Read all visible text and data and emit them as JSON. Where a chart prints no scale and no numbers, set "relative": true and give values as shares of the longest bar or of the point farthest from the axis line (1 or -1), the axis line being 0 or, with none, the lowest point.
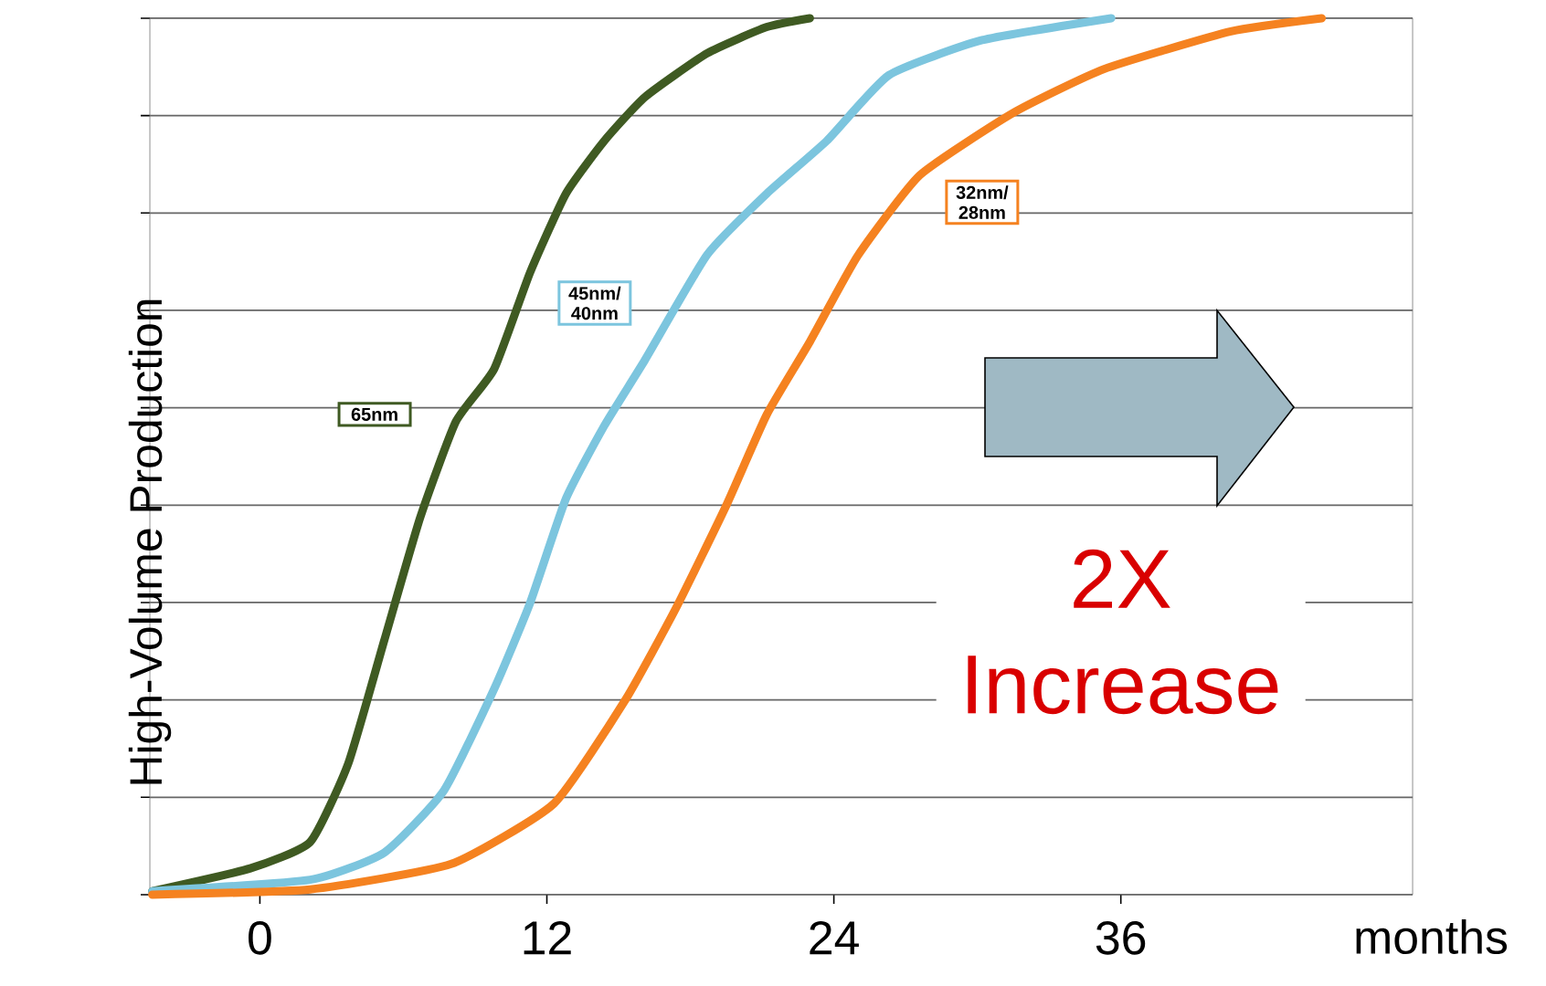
{
  "chart_data": {
    "type": "line",
    "relative": true,
    "xlabel": "months",
    "ylabel": "High-Volume Production",
    "xlim": [
      -4.6,
      48.2
    ],
    "xticks": [
      0,
      12,
      24,
      36
    ],
    "grid": "y",
    "line_style": "solid",
    "annotations": [
      "2X Increase"
    ],
    "series": [
      {
        "name": "65nm",
        "color": "#3f5a22",
        "x": [
          -4.5,
          -0.4,
          2.1,
          3.7,
          5.2,
          6.7,
          8.2,
          9.8,
          11.3,
          12.8,
          14.4,
          16.1,
          18.7,
          21.2,
          23.0
        ],
        "values": [
          0.004,
          0.03,
          0.06,
          0.15,
          0.29,
          0.43,
          0.54,
          0.6,
          0.71,
          0.8,
          0.86,
          0.91,
          0.96,
          0.99,
          1.0
        ]
      },
      {
        "name": "45nm/ 40nm",
        "color": "#7cc5de",
        "x": [
          -4.5,
          2.1,
          5.2,
          7.7,
          9.8,
          11.3,
          12.8,
          14.4,
          16.1,
          18.7,
          21.2,
          23.7,
          26.3,
          30.2,
          35.6
        ],
        "values": [
          0.004,
          0.017,
          0.048,
          0.119,
          0.235,
          0.333,
          0.452,
          0.535,
          0.61,
          0.73,
          0.8,
          0.86,
          0.935,
          0.975,
          1.0
        ]
      },
      {
        "name": "32nm/ 28nm",
        "color": "#f58220",
        "x": [
          -4.5,
          2.1,
          8.0,
          12.3,
          15.3,
          17.4,
          19.5,
          21.2,
          23.0,
          25.0,
          27.6,
          31.5,
          35.3,
          40.6,
          44.4
        ],
        "values": [
          0.0,
          0.006,
          0.035,
          0.104,
          0.223,
          0.327,
          0.444,
          0.548,
          0.631,
          0.729,
          0.821,
          0.892,
          0.942,
          0.985,
          1.0
        ]
      }
    ]
  }
}
